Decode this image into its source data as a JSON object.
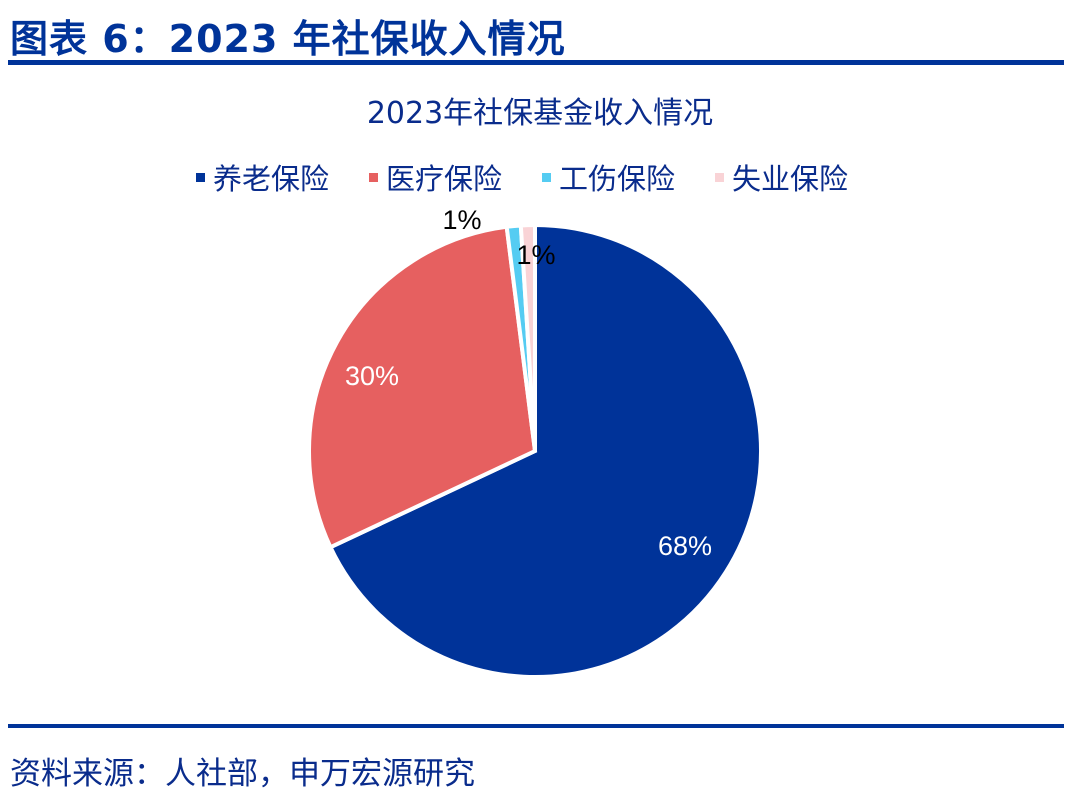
{
  "figure": {
    "title": "图表 6：2023 年社保收入情况",
    "source": "资料来源：人社部，申万宏源研究"
  },
  "chart_data": {
    "type": "pie",
    "title": "2023年社保基金收入情况",
    "categories": [
      "养老保险",
      "医疗保险",
      "工伤保险",
      "失业保险"
    ],
    "values": [
      68,
      30,
      1,
      1
    ],
    "labels": [
      "68%",
      "30%",
      "1%",
      "1%"
    ],
    "colors": [
      "#003399",
      "#e66060",
      "#55ccf2",
      "#f9d3d6"
    ],
    "legend_position": "top",
    "start_angle": "12 o'clock, clockwise"
  }
}
